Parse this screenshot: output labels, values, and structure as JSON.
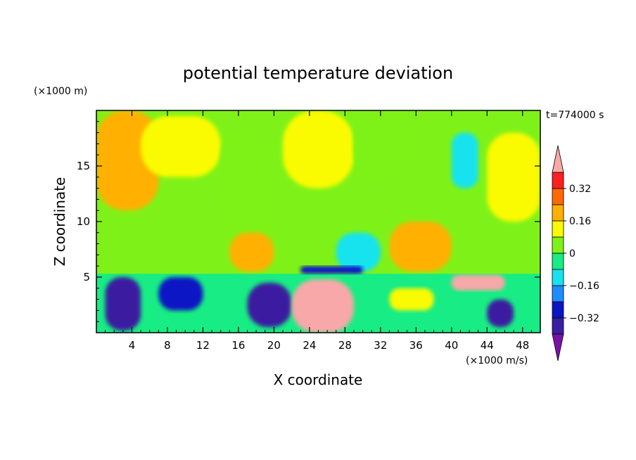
{
  "chart_data": {
    "type": "heatmap",
    "title": "potential temperature deviation",
    "xlabel": "X coordinate",
    "ylabel": "Z coordinate",
    "x_unit": "(×1000 m/s)",
    "y_unit": "(×1000 m)",
    "time_label": "t=774000 s",
    "xlim": [
      0,
      50
    ],
    "ylim": [
      0,
      20
    ],
    "x_ticks": [
      4,
      8,
      12,
      16,
      20,
      24,
      28,
      32,
      36,
      40,
      44,
      48
    ],
    "y_ticks": [
      5,
      10,
      15
    ],
    "colorbar": {
      "levels": [
        -0.4,
        -0.32,
        -0.24,
        -0.16,
        -0.08,
        0,
        0.08,
        0.16,
        0.24,
        0.32,
        0.4
      ],
      "tick_labels": [
        "0.32",
        "0.16",
        "0",
        "−0.16",
        "−0.32"
      ],
      "tick_values": [
        0.32,
        0.16,
        0,
        -0.16,
        -0.32
      ],
      "colors": [
        "#7b12a6",
        "#3a1fa0",
        "#0a16c4",
        "#1e8cff",
        "#16e3ee",
        "#18ec84",
        "#7ef218",
        "#fafa00",
        "#ffb000",
        "#ff6a00",
        "#ff2020",
        "#f8a8a8"
      ]
    },
    "regions": [
      {
        "x": [
          0,
          50
        ],
        "z": [
          5.3,
          20
        ],
        "value": 0.02
      },
      {
        "x": [
          0,
          7
        ],
        "z": [
          11,
          20
        ],
        "value": 0.18
      },
      {
        "x": [
          5,
          14
        ],
        "z": [
          14,
          19.5
        ],
        "value": 0.15
      },
      {
        "x": [
          14,
          20
        ],
        "z": [
          8,
          18
        ],
        "value": 0.06
      },
      {
        "x": [
          21,
          29
        ],
        "z": [
          13,
          20
        ],
        "value": 0.1
      },
      {
        "x": [
          29,
          35
        ],
        "z": [
          14,
          20
        ],
        "value": 0.06
      },
      {
        "x": [
          44,
          50
        ],
        "z": [
          10,
          18
        ],
        "value": 0.1
      },
      {
        "x": [
          40,
          43
        ],
        "z": [
          13,
          18
        ],
        "value": -0.12
      },
      {
        "x": [
          15,
          20
        ],
        "z": [
          5.5,
          9
        ],
        "value": 0.18
      },
      {
        "x": [
          27,
          32
        ],
        "z": [
          5.5,
          9
        ],
        "value": -0.12
      },
      {
        "x": [
          23,
          30
        ],
        "z": [
          5.3,
          6
        ],
        "value": -0.3
      },
      {
        "x": [
          33,
          40
        ],
        "z": [
          5.5,
          10
        ],
        "value": 0.18
      },
      {
        "x": [
          0,
          50
        ],
        "z": [
          0,
          5.2
        ],
        "value": -0.08
      },
      {
        "x": [
          1,
          5
        ],
        "z": [
          0.2,
          5
        ],
        "value": -0.34
      },
      {
        "x": [
          7,
          12
        ],
        "z": [
          2,
          5
        ],
        "value": -0.3
      },
      {
        "x": [
          17,
          22
        ],
        "z": [
          0.5,
          4.5
        ],
        "value": -0.34
      },
      {
        "x": [
          22,
          29
        ],
        "z": [
          0,
          4.8
        ],
        "value": 0.42
      },
      {
        "x": [
          33,
          38
        ],
        "z": [
          2,
          4
        ],
        "value": 0.1
      },
      {
        "x": [
          40,
          46
        ],
        "z": [
          3.8,
          5.2
        ],
        "value": 0.42
      },
      {
        "x": [
          44,
          47
        ],
        "z": [
          0.5,
          3
        ],
        "value": -0.34
      }
    ]
  }
}
